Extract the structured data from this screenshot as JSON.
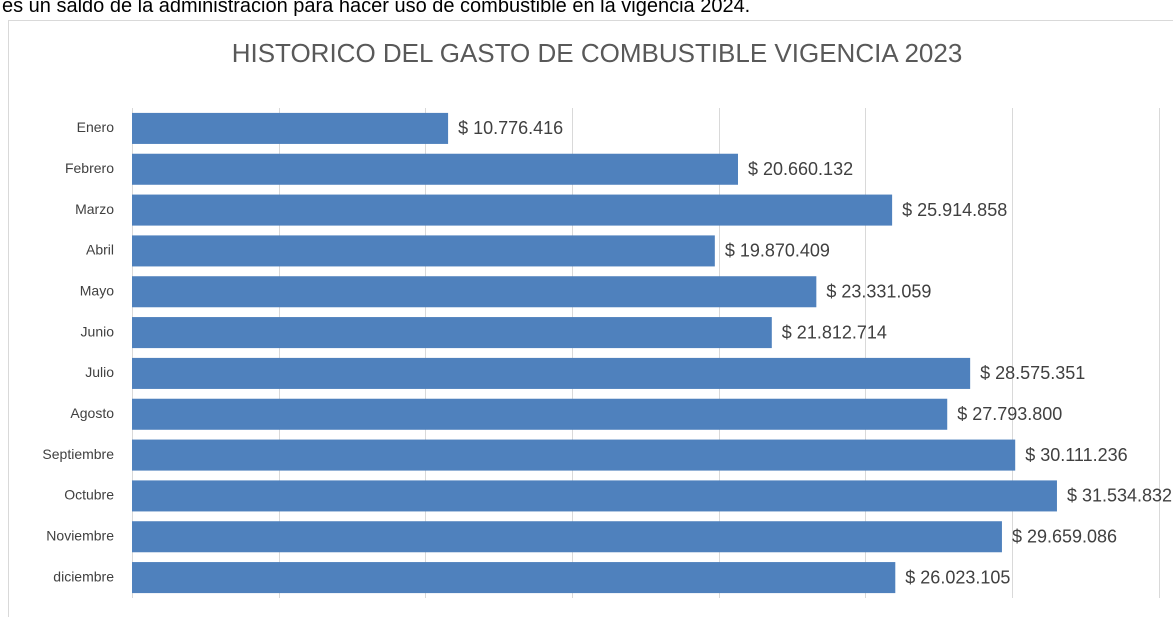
{
  "intro_text": "es un saldo de la administración para hacer uso de combustible en la vigencia 2024.",
  "chart_data": {
    "type": "hbar",
    "title": "HISTORICO DEL GASTO DE COMBUSTIBLE VIGENCIA 2023",
    "categories": [
      "Enero",
      "Febrero",
      "Marzo",
      "Abril",
      "Mayo",
      "Junio",
      "Julio",
      "Agosto",
      "Septiembre",
      "Octubre",
      "Noviembre",
      "diciembre"
    ],
    "values": [
      10776416,
      20660132,
      25914858,
      19870409,
      23331059,
      21812714,
      28575351,
      27793800,
      30111236,
      31534832,
      29659086,
      26023105
    ],
    "value_labels": [
      "$ 10.776.416",
      "$ 20.660.132",
      "$ 25.914.858",
      "$ 19.870.409",
      "$ 23.331.059",
      "$ 21.812.714",
      "$ 28.575.351",
      "$ 27.793.800",
      "$ 30.111.236",
      "$ 31.534.832",
      "$ 29.659.086",
      "$ 26.023.105"
    ],
    "color": "#4f81bd",
    "xlim": [
      0,
      35000000
    ],
    "xticks": [
      0,
      5000000,
      10000000,
      15000000,
      20000000,
      25000000,
      30000000,
      35000000
    ],
    "grid": true
  }
}
